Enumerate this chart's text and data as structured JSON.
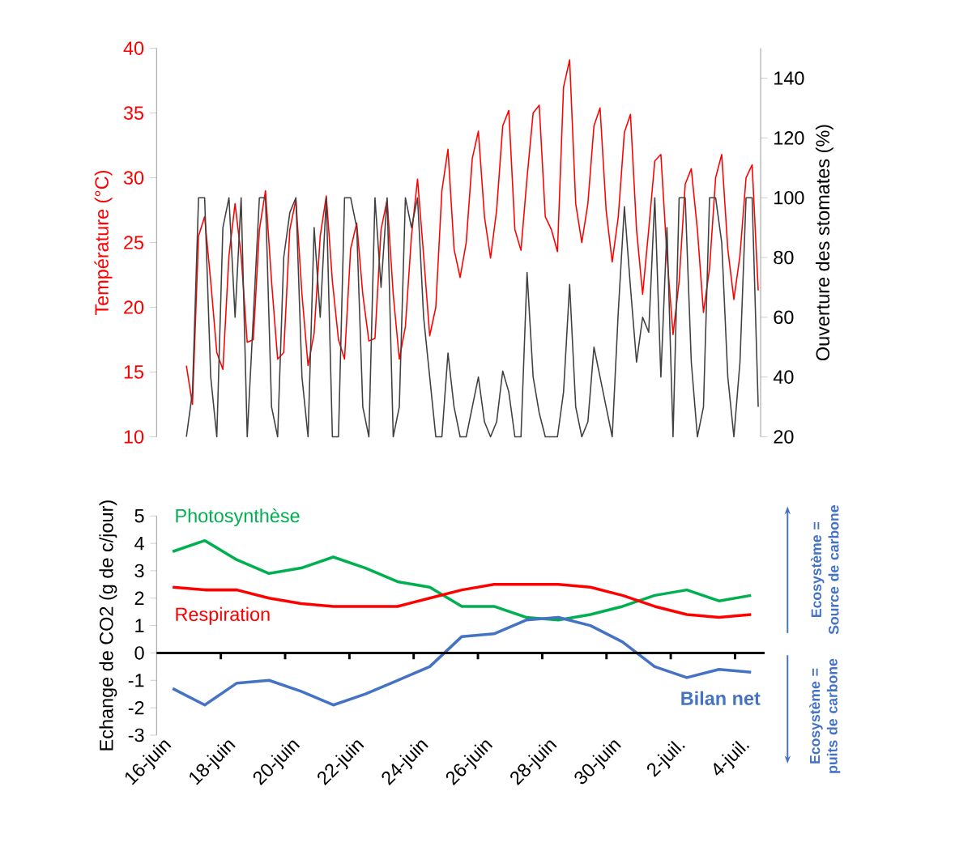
{
  "chart_data": [
    {
      "type": "line",
      "categories": [
        null,
        null,
        null,
        null,
        null,
        null,
        null,
        null,
        null,
        null,
        null,
        null,
        null,
        null,
        null,
        null,
        null,
        null,
        null,
        null,
        null,
        null,
        null,
        null,
        null,
        null,
        null,
        null,
        null,
        null,
        null,
        null,
        null,
        null,
        null,
        null,
        null,
        null,
        null,
        null,
        null,
        null,
        null,
        null,
        null,
        null,
        null,
        null,
        null,
        null,
        null,
        null,
        null,
        null,
        null,
        null,
        null,
        null,
        null,
        null,
        null,
        null,
        null,
        null,
        null,
        null,
        null,
        null,
        null,
        null,
        null,
        null,
        null,
        null,
        null,
        null,
        null,
        null,
        null,
        null,
        null,
        null,
        null,
        null,
        null,
        null,
        null,
        null,
        null,
        null,
        null,
        null,
        null,
        null,
        null
      ],
      "ylabel": "Température (°C)",
      "y2label": "Ouverture des stomates (%)",
      "ylim": [
        10,
        40
      ],
      "yticks": [
        10,
        15,
        20,
        25,
        30,
        35,
        40
      ],
      "y2lim": [
        20,
        150
      ],
      "y2ticks": [
        20,
        40,
        60,
        80,
        100,
        120,
        140
      ],
      "series": [
        {
          "color": "#ff0000",
          "values": [
            15.5,
            12.5,
            25.5,
            27.0,
            22.0,
            16.5,
            15.2,
            24.0,
            28.0,
            24.0,
            17.3,
            17.5,
            26.0,
            29.0,
            22.0,
            16.0,
            16.5,
            26.0,
            28.3,
            21.0,
            15.5,
            18.0,
            25.5,
            28.6,
            22.0,
            17.5,
            16.0,
            24.5,
            26.5,
            21.0,
            17.4,
            17.6,
            26.0,
            28.3,
            21.0,
            16.0,
            18.5,
            25.5,
            29.9,
            24.0,
            17.8,
            20.0,
            29.0,
            32.2,
            24.5,
            22.3,
            25.0,
            31.5,
            33.6,
            27.0,
            23.8,
            27.5,
            34.0,
            35.2,
            26.0,
            24.4,
            30.0,
            35.0,
            35.6,
            27.0,
            26.0,
            24.3,
            37.0,
            39.1,
            28.0,
            25.0,
            28.0,
            34.0,
            35.4,
            27.5,
            23.5,
            27.0,
            33.5,
            34.9,
            26.0,
            21.0,
            26.0,
            31.3,
            31.8,
            24.0,
            17.9,
            22.0,
            29.5,
            30.7,
            26.0,
            19.6,
            23.0,
            30.0,
            31.8,
            24.5,
            20.6,
            24.0,
            30.0,
            31.0,
            21.3
          ]
        },
        {
          "color": "#404040",
          "axis": "y2",
          "values": [
            20,
            35,
            100,
            100,
            40,
            20,
            90,
            100,
            60,
            100,
            20,
            60,
            100,
            100,
            30,
            20,
            80,
            95,
            100,
            40,
            20,
            90,
            60,
            100,
            20,
            20,
            100,
            100,
            90,
            30,
            20,
            100,
            70,
            100,
            20,
            30,
            100,
            90,
            100,
            60,
            40,
            20,
            20,
            48,
            30,
            20,
            20,
            30,
            40,
            25,
            20,
            25,
            42,
            35,
            20,
            20,
            75,
            40,
            28,
            20,
            20,
            20,
            35,
            71,
            30,
            20,
            25,
            50,
            40,
            30,
            20,
            62,
            97,
            70,
            45,
            60,
            55,
            100,
            40,
            90,
            20,
            100,
            100,
            45,
            20,
            30,
            100,
            100,
            85,
            40,
            20,
            45,
            100,
            100,
            30
          ]
        }
      ]
    },
    {
      "type": "line",
      "categories": [
        "16-juin",
        null,
        "18-juin",
        null,
        "20-juin",
        null,
        "22-juin",
        null,
        "24-juin",
        null,
        "26-juin",
        null,
        "28-juin",
        null,
        "30-juin",
        null,
        "2-juil.",
        null,
        "4-juil."
      ],
      "ylabel": "Echange de CO2 (g de c/jour)",
      "ylim": [
        -3,
        5
      ],
      "yticks": [
        -3,
        -2,
        -1,
        0,
        1,
        2,
        3,
        4,
        5
      ],
      "series": [
        {
          "name": "Photosynthèse",
          "color": "#00b050",
          "values": [
            3.7,
            4.1,
            3.4,
            2.9,
            3.1,
            3.5,
            3.1,
            2.6,
            2.4,
            1.7,
            1.7,
            1.3,
            1.2,
            1.4,
            1.7,
            2.1,
            2.3,
            1.9,
            2.1
          ]
        },
        {
          "name": "Respiration",
          "color": "#ff0000",
          "values": [
            2.4,
            2.3,
            2.3,
            2.0,
            1.8,
            1.7,
            1.7,
            1.7,
            2.0,
            2.3,
            2.5,
            2.5,
            2.5,
            2.4,
            2.1,
            1.7,
            1.4,
            1.3,
            1.4
          ]
        },
        {
          "name": "**Bilan net**",
          "color": "#4472c4",
          "values": [
            -1.3,
            -1.9,
            -1.1,
            -1.0,
            -1.4,
            -1.9,
            -1.5,
            -1.0,
            -0.5,
            0.6,
            0.7,
            1.2,
            1.3,
            1.0,
            0.4,
            -0.5,
            -0.9,
            -0.6,
            -0.7
          ]
        }
      ],
      "ref_lines": [
        {
          "axis": "y",
          "value": 0,
          "color": "#000000"
        }
      ],
      "annotations": [
        "Ecosystème = Source de carbone",
        "Ecosystème = puits de carbone"
      ]
    }
  ]
}
